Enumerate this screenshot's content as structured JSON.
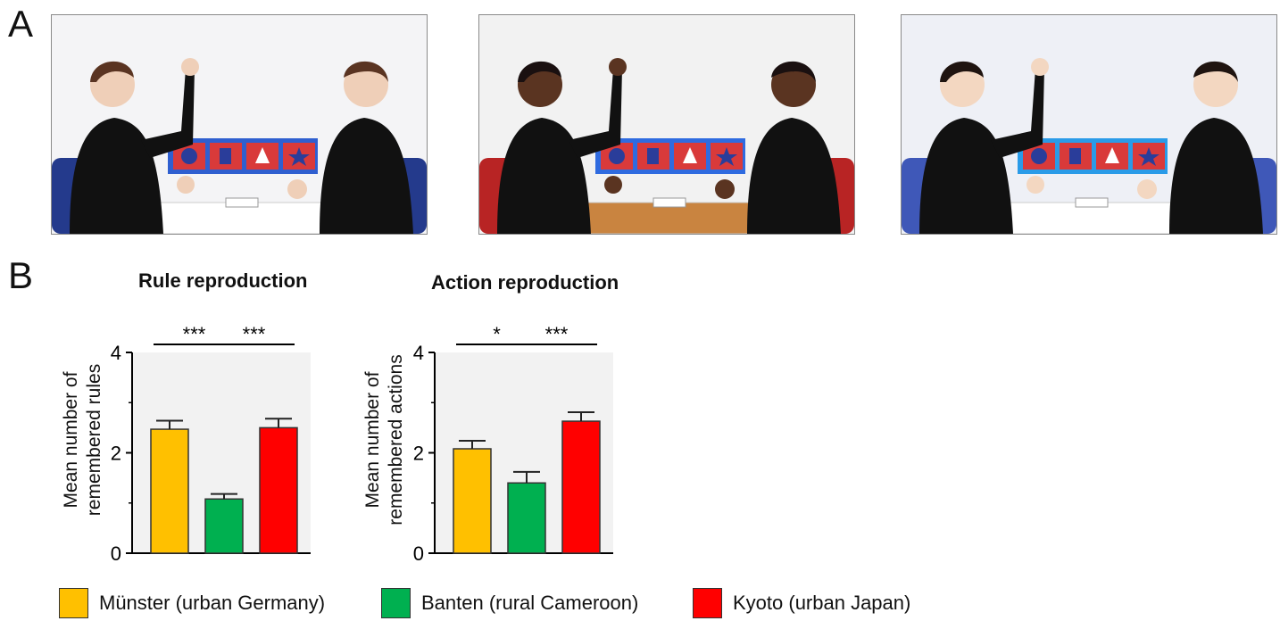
{
  "panel_labels": {
    "a": "A",
    "b": "B"
  },
  "photos": [
    {
      "name": "münster-photo",
      "table_color": "#ffffff",
      "wall_color": "#f4f4f6",
      "board_color": "#2f5fd0",
      "chair_color": "#243a8c",
      "skin": "#efcfb8",
      "hair": "#5a3422"
    },
    {
      "name": "banten-photo",
      "table_color": "#c98440",
      "wall_color": "#f2f2f2",
      "board_color": "#2f6be0",
      "chair_color": "#b82424",
      "skin": "#5a3421",
      "hair": "#1a1010"
    },
    {
      "name": "kyoto-photo",
      "table_color": "#ffffff",
      "wall_color": "#eef0f6",
      "board_color": "#2a9be8",
      "chair_color": "#3f58b8",
      "skin": "#f3d7c1",
      "hair": "#1f1410"
    }
  ],
  "legend": [
    {
      "label": "Münster (urban Germany)",
      "color": "#ffc000"
    },
    {
      "label": "Banten (rural Cameroon)",
      "color": "#00b050"
    },
    {
      "label": "Kyoto (urban Japan)",
      "color": "#ff0000"
    }
  ],
  "chart_data": [
    {
      "type": "bar",
      "title": "Rule reproduction",
      "ylabel": "Mean number of remembered rules",
      "ylabel_lines": [
        "Mean number of",
        "remembered rules"
      ],
      "ylim": [
        0,
        4
      ],
      "yticks": [
        0,
        2,
        4
      ],
      "categories": [
        "Münster (urban Germany)",
        "Banten (rural Cameroon)",
        "Kyoto (urban Japan)"
      ],
      "values": [
        2.47,
        1.08,
        2.5
      ],
      "errors": [
        0.17,
        0.1,
        0.18
      ],
      "colors": [
        "#ffc000",
        "#00b050",
        "#ff0000"
      ],
      "significance": [
        {
          "from": 0,
          "to": 1,
          "label": "***"
        },
        {
          "from": 1,
          "to": 2,
          "label": "***"
        }
      ]
    },
    {
      "type": "bar",
      "title": "Action reproduction",
      "ylabel": "Mean number of remembered actions",
      "ylabel_lines": [
        "Mean number of",
        "remembered actions"
      ],
      "ylim": [
        0,
        4
      ],
      "yticks": [
        0,
        2,
        4
      ],
      "categories": [
        "Münster (urban Germany)",
        "Banten (rural Cameroon)",
        "Kyoto (urban Japan)"
      ],
      "values": [
        2.08,
        1.4,
        2.63
      ],
      "errors": [
        0.16,
        0.22,
        0.18
      ],
      "colors": [
        "#ffc000",
        "#00b050",
        "#ff0000"
      ],
      "significance": [
        {
          "from": 0,
          "to": 1,
          "label": "*"
        },
        {
          "from": 1,
          "to": 2,
          "label": "***"
        }
      ]
    }
  ]
}
